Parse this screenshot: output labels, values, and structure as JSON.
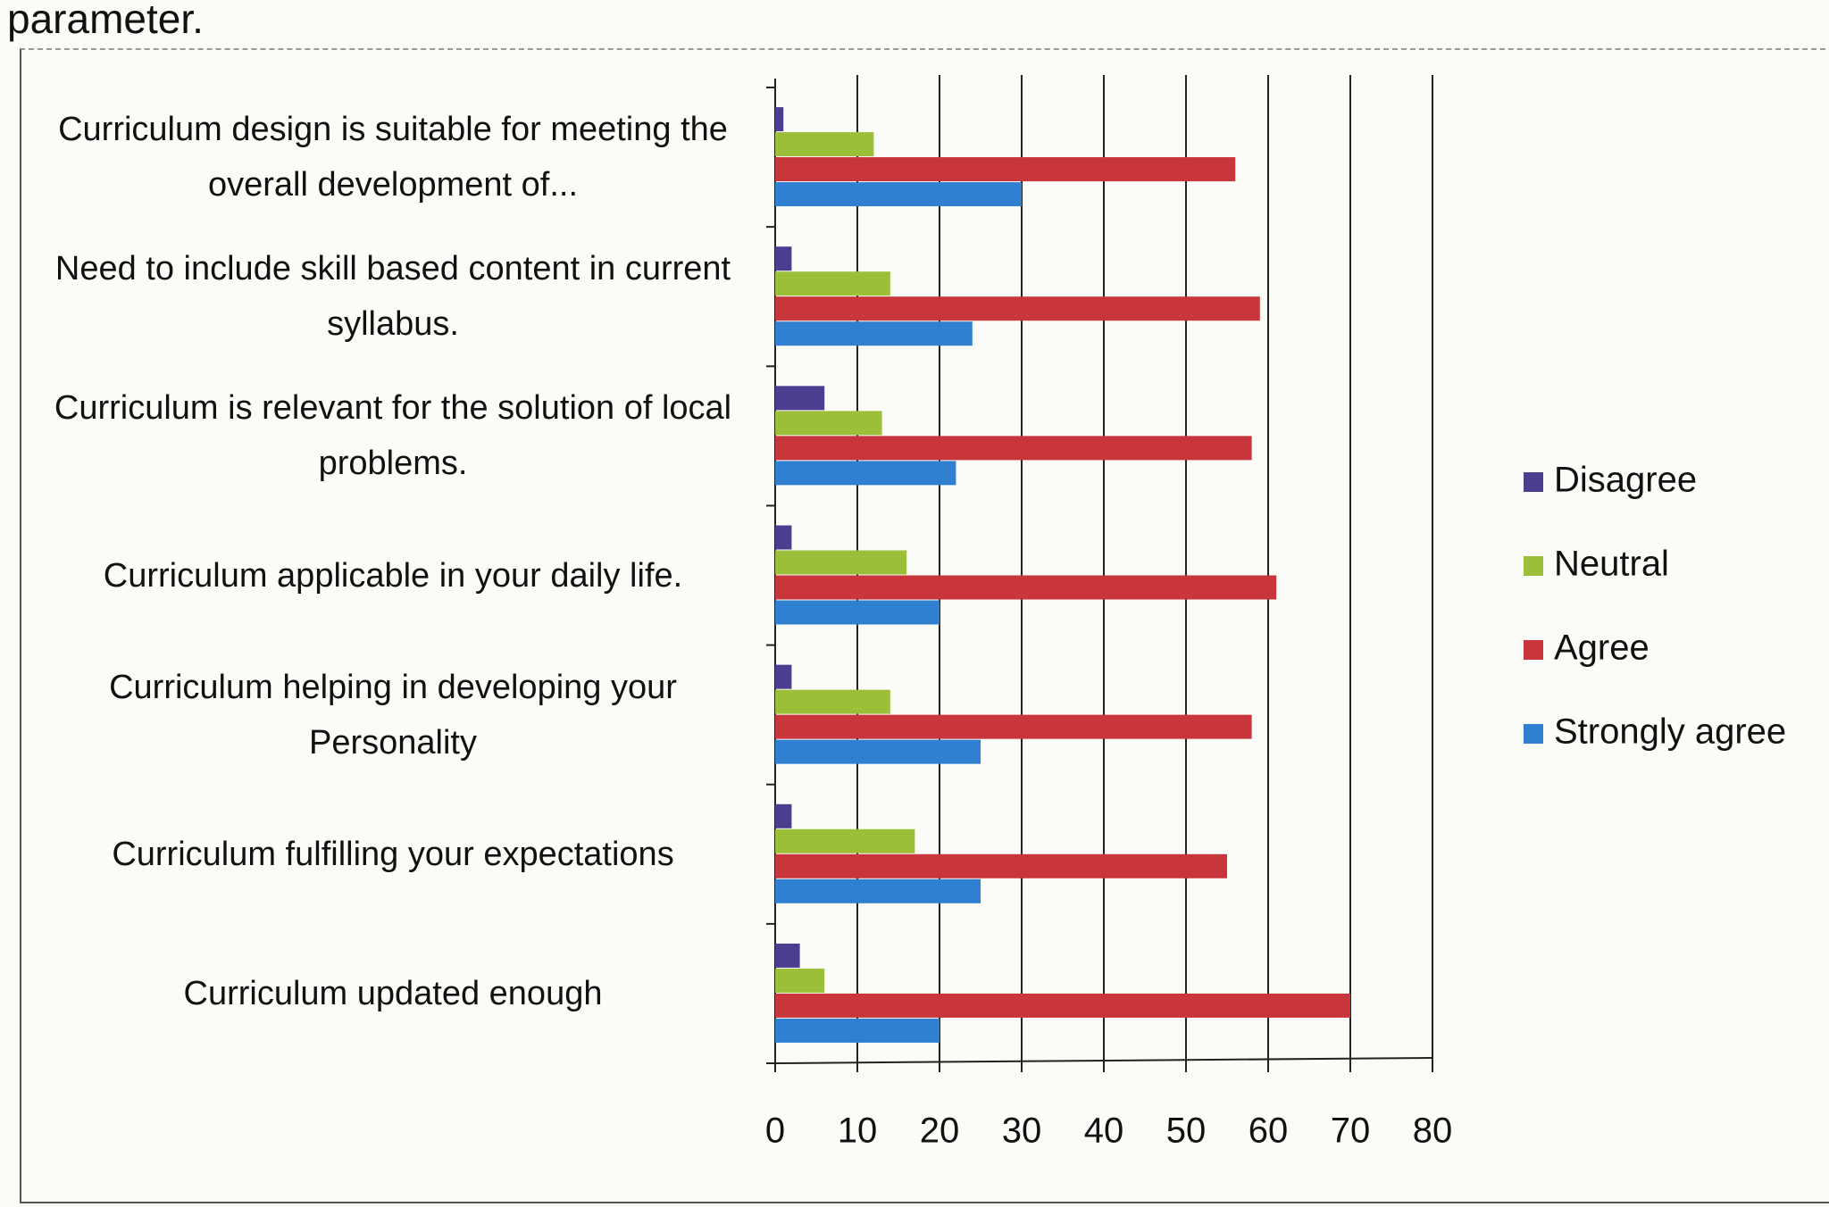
{
  "page_text": "parameter.",
  "chart_data": {
    "type": "barh",
    "categories": [
      "Curriculum design is suitable for meeting the overall development of...",
      "Need to include skill based content in current syllabus.",
      "Curriculum is relevant for the solution of local problems.",
      "Curriculum applicable in your daily life.",
      "Curriculum helping in developing your Personality",
      "Curriculum fulfilling your expectations",
      "Curriculum updated enough"
    ],
    "series": [
      {
        "name": "Disagree",
        "color": "#4b3d8f",
        "values": [
          1,
          2,
          6,
          2,
          2,
          2,
          3
        ]
      },
      {
        "name": "Neutral",
        "color": "#9cbf3a",
        "values": [
          12,
          14,
          13,
          16,
          14,
          17,
          6
        ]
      },
      {
        "name": "Agree",
        "color": "#c8353a",
        "values": [
          56,
          59,
          58,
          61,
          58,
          55,
          70
        ]
      },
      {
        "name": "Strongly agree",
        "color": "#2f80d1",
        "values": [
          30,
          24,
          22,
          20,
          25,
          25,
          20
        ]
      }
    ],
    "xlim": [
      0,
      80
    ],
    "xticks": [
      0,
      10,
      20,
      30,
      40,
      50,
      60,
      70,
      80
    ],
    "grid": true,
    "legend": "right"
  }
}
